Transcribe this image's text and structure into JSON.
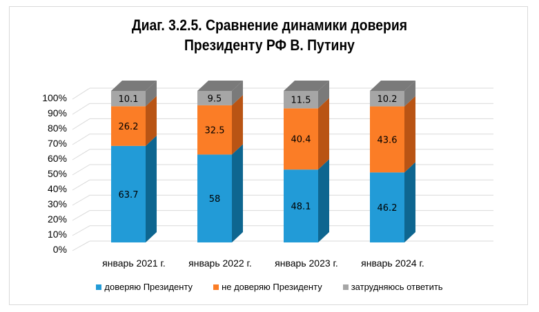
{
  "title_line1": "Диаг. 3.2.5. Сравнение динамики доверия",
  "title_line2": "Президенту РФ В. Путину",
  "chart_data": {
    "type": "bar",
    "stacked": true,
    "percent_stacked": true,
    "three_d": true,
    "categories": [
      "январь 2021 г.",
      "январь 2022 г.",
      "январь 2023 г.",
      "январь 2024 г."
    ],
    "series": [
      {
        "name": "доверяю Президенту",
        "values": [
          63.7,
          58,
          48.1,
          46.2
        ],
        "color": "#229BD7",
        "side_color": "#0E6690"
      },
      {
        "name": "не доверяю Президенту",
        "values": [
          26.2,
          32.5,
          40.4,
          43.6
        ],
        "color": "#FB7D26",
        "side_color": "#B95414"
      },
      {
        "name": "затрудняюсь ответить",
        "values": [
          10.1,
          9.5,
          11.5,
          10.2
        ],
        "color": "#A6A6A6",
        "side_color": "#7A7A7A"
      }
    ],
    "yticks": [
      "0%",
      "10%",
      "20%",
      "30%",
      "40%",
      "50%",
      "60%",
      "70%",
      "80%",
      "90%",
      "100%"
    ],
    "ylim": [
      0,
      100
    ],
    "grid": true,
    "legend_position": "bottom",
    "data_labels": true
  }
}
